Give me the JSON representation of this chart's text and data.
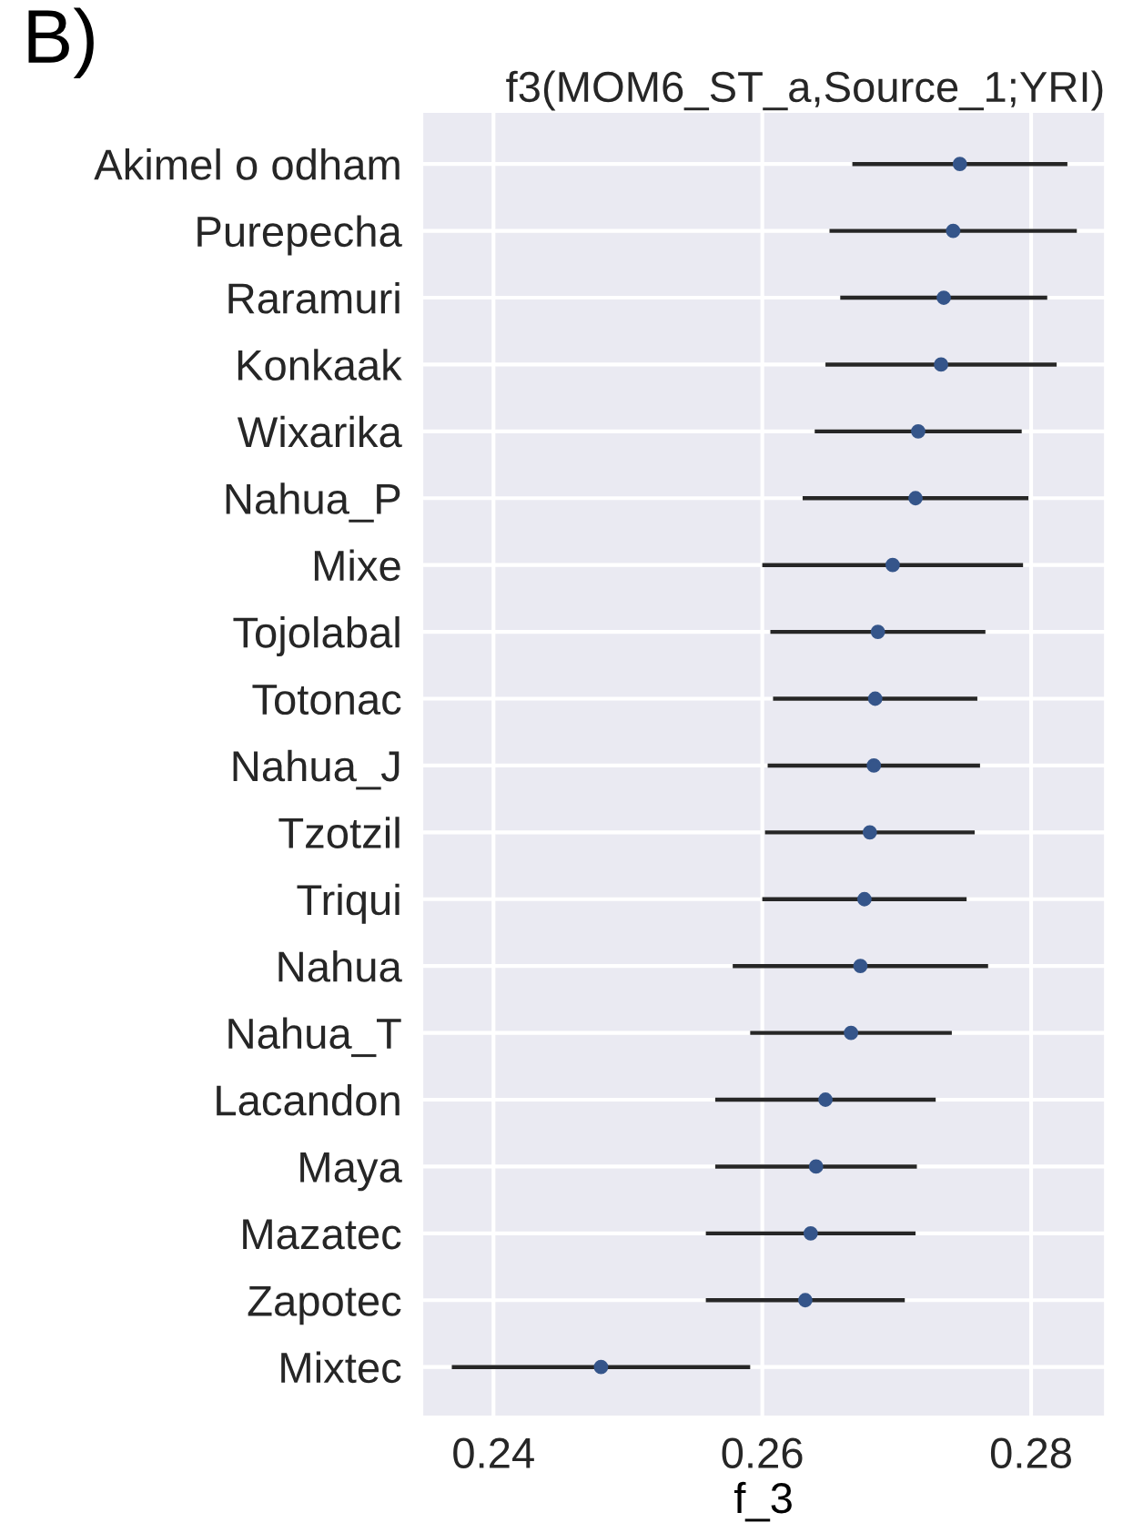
{
  "chart_data": {
    "type": "scatter",
    "orientation": "horizontal",
    "title": "f3(MOM6_ST_a,Source_1;YRI)",
    "xlabel": "f_3",
    "annotations": [
      "B)"
    ],
    "categories": [
      "Akimel o odham",
      "Purepecha",
      "Raramuri",
      "Konkaak",
      "Wixarika",
      "Nahua_P",
      "Mixe",
      "Tojolabal",
      "Totonac",
      "Nahua_J",
      "Tzotzil",
      "Triqui",
      "Nahua",
      "Nahua_T",
      "Lacandon",
      "Maya",
      "Mazatec",
      "Zapotec",
      "Mixtec"
    ],
    "series": [
      {
        "color": "#35558a",
        "values": [
          0.2747,
          0.2742,
          0.2735,
          0.2733,
          0.2716,
          0.2714,
          0.2697,
          0.2686,
          0.2684,
          0.2683,
          0.268,
          0.2676,
          0.2673,
          0.2666,
          0.2647,
          0.264,
          0.2636,
          0.2632,
          0.248
        ],
        "errors": [
          0.008,
          0.0092,
          0.0077,
          0.0086,
          0.0077,
          0.0084,
          0.0097,
          0.008,
          0.0076,
          0.0079,
          0.0078,
          0.0076,
          0.0095,
          0.0075,
          0.0082,
          0.0075,
          0.0078,
          0.0074,
          0.0111
        ]
      }
    ],
    "xlim": [
      0.2347,
      0.2855
    ],
    "xticks": [
      0.24,
      0.26,
      0.28
    ],
    "grid": true,
    "marker": "circle",
    "legend": false
  }
}
